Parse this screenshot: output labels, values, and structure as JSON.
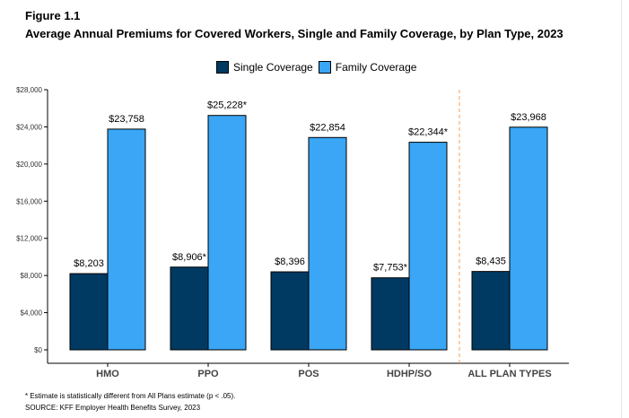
{
  "figure_label": "Figure 1.1",
  "title": "Average Annual Premiums for Covered Workers, Single and Family Coverage, by Plan Type, 2023",
  "footnotes": [
    "* Estimate is statistically different from All Plans estimate (p < .05).",
    "SOURCE: KFF Employer Health Benefits Survey, 2023"
  ],
  "colors": {
    "single": "#003a63",
    "family": "#3aa6f5",
    "separator": "#f5a05a"
  },
  "chart_data": {
    "type": "bar",
    "categories": [
      "HMO",
      "PPO",
      "POS",
      "HDHP/SO",
      "ALL PLAN TYPES"
    ],
    "series": [
      {
        "name": "Single Coverage",
        "values": [
          8203,
          8906,
          8396,
          7753,
          8435
        ],
        "labels": [
          "$8,203",
          "$8,906*",
          "$8,396",
          "$7,753*",
          "$8,435"
        ]
      },
      {
        "name": "Family Coverage",
        "values": [
          23758,
          25228,
          22854,
          22344,
          23968
        ],
        "labels": [
          "$23,758",
          "$25,228*",
          "$22,854",
          "$22,344*",
          "$23,968"
        ]
      }
    ],
    "ylim": [
      0,
      28000
    ],
    "yticks": [
      0,
      4000,
      8000,
      12000,
      16000,
      20000,
      24000,
      28000
    ],
    "ytick_labels": [
      "$0",
      "$4,000",
      "$8,000",
      "$12,000",
      "$16,000",
      "$20,000",
      "$24,000",
      "$28,000"
    ],
    "legend_position": "top-center",
    "grid": false,
    "separator_before_category": "ALL PLAN TYPES"
  }
}
